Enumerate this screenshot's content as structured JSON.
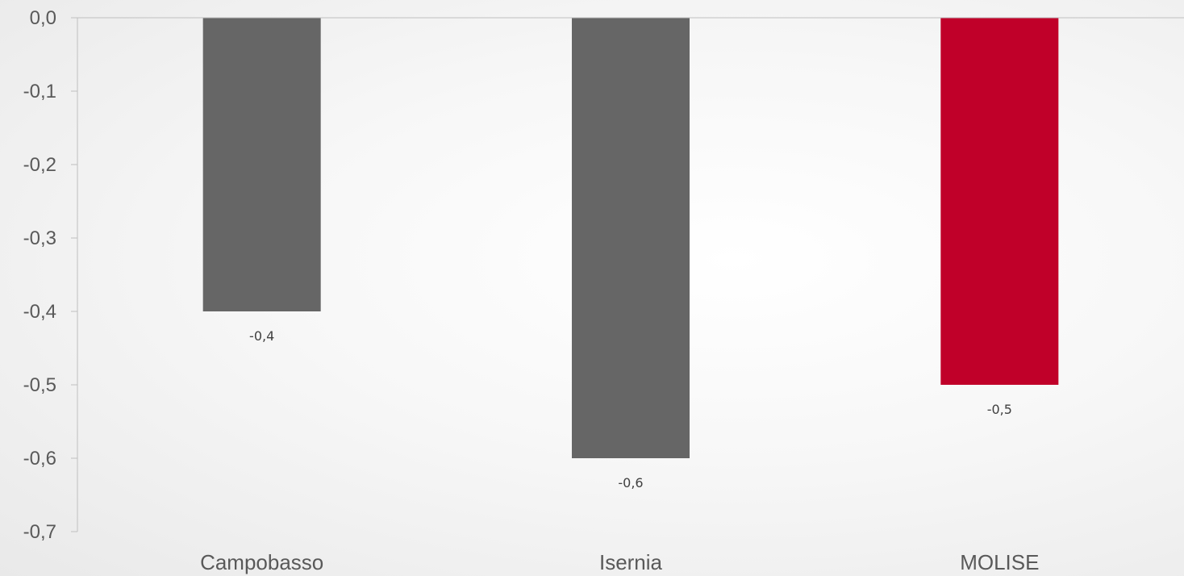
{
  "chart_data": {
    "type": "bar",
    "categories": [
      "Campobasso",
      "Isernia",
      "MOLISE"
    ],
    "values": [
      -0.4,
      -0.6,
      -0.5
    ],
    "value_labels": [
      "-0,4",
      "-0,6",
      "-0,5"
    ],
    "bar_colors": [
      "#666666",
      "#666666",
      "#c00029"
    ],
    "title": "",
    "xlabel": "",
    "ylabel": "",
    "ylim": [
      -0.7,
      0.0
    ],
    "y_ticks": [
      0.0,
      -0.1,
      -0.2,
      -0.3,
      -0.4,
      -0.5,
      -0.6,
      -0.7
    ],
    "y_tick_labels": [
      "0,0",
      "-0,1",
      "-0,2",
      "-0,3",
      "-0,4",
      "-0,5",
      "-0,6",
      "-0,7"
    ],
    "grid": false,
    "legend": "none"
  },
  "colors": {
    "axis": "#bfbfbf",
    "tick_text": "#595959",
    "data_label_text": "#404040"
  }
}
